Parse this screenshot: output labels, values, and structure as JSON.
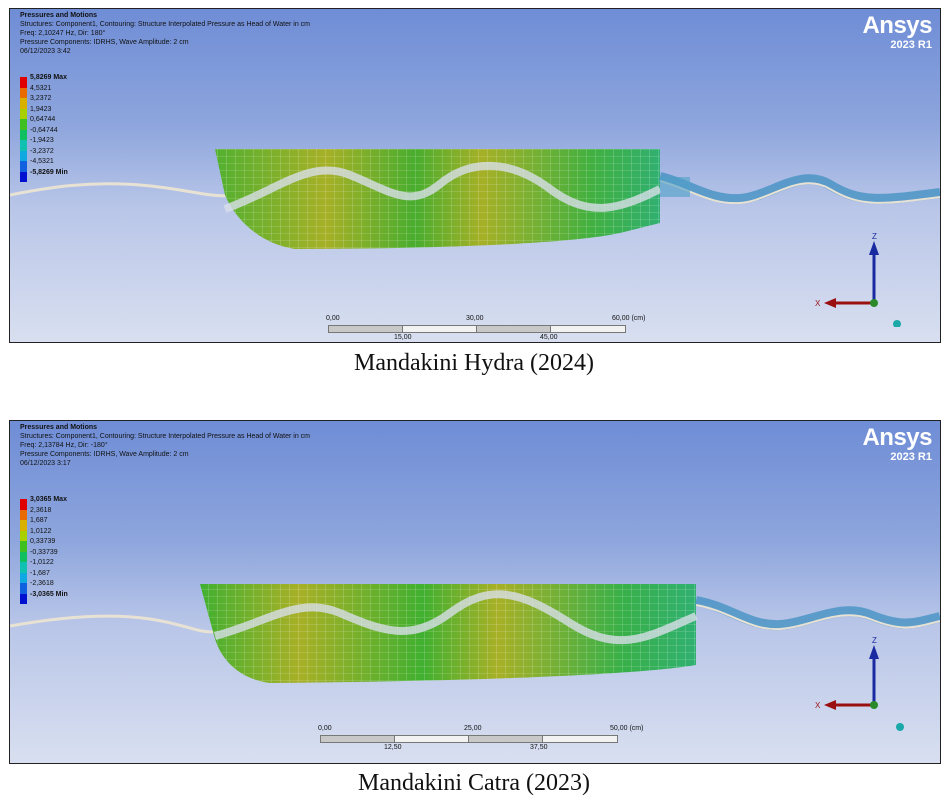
{
  "brand": {
    "name": "Ansys",
    "version": "2023 R1",
    "color": "#ffffff"
  },
  "panels": [
    {
      "info": {
        "title": "Pressures and Motions",
        "line1": "Structures: Component1, Contouring: Structure Interpolated Pressure as Head of Water in cm",
        "line2": "Freq: 2,10247 Hz, Dir: 180°",
        "line3": "Pressure Components: IDRHS, Wave Amplitude: 2 cm",
        "line4": "06/12/2023 3:42"
      },
      "legend": [
        "5,8269 Max",
        "4,5321",
        "3,2372",
        "1,9423",
        "0,64744",
        "-0,64744",
        "-1,9423",
        "-3,2372",
        "-4,5321",
        "-5,8269 Min"
      ],
      "scale": {
        "top": [
          "0,00",
          "30,00",
          "60,00 (cm)"
        ],
        "bottom": [
          "15,00",
          "45,00"
        ]
      },
      "triad": {
        "z": "Z",
        "x": "X"
      },
      "caption": "Mandakini Hydra (2024)"
    },
    {
      "info": {
        "title": "Pressures and Motions",
        "line1": "Structures: Component1, Contouring: Structure Interpolated Pressure as Head of Water in cm",
        "line2": "Freq: 2,13784 Hz, Dir: -180°",
        "line3": "Pressure Components: IDRHS, Wave Amplitude: 2 cm",
        "line4": "06/12/2023 3:17"
      },
      "legend": [
        "3,0365 Max",
        "2,3618",
        "1,687",
        "1,0122",
        "0,33739",
        "-0,33739",
        "-1,0122",
        "-1,687",
        "-2,3618",
        "-3,0365 Min"
      ],
      "scale": {
        "top": [
          "0,00",
          "25,00",
          "50,00 (cm)"
        ],
        "bottom": [
          "12,50",
          "37,50"
        ]
      },
      "triad": {
        "z": "Z",
        "x": "X"
      },
      "caption": "Mandakini Catra (2023)"
    }
  ],
  "legend_colors": [
    "#e00000",
    "#e86a00",
    "#d8b000",
    "#a8d000",
    "#3fc020",
    "#10c060",
    "#10c0b0",
    "#10a8e0",
    "#1060e0",
    "#0010d0"
  ]
}
